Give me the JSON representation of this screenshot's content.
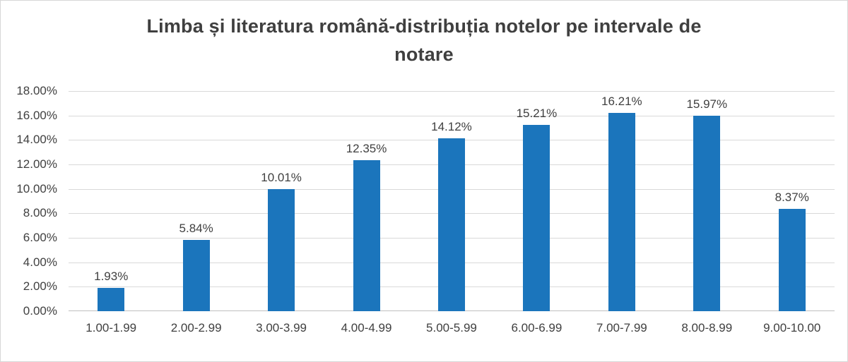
{
  "chart_data": {
    "type": "bar",
    "title": "Limba și literatura română-distribuția notelor pe intervale de notare",
    "title_lines": [
      "Limba și literatura română-distribuția notelor pe intervale de",
      "notare"
    ],
    "categories": [
      "1.00-1.99",
      "2.00-2.99",
      "3.00-3.99",
      "4.00-4.99",
      "5.00-5.99",
      "6.00-6.99",
      "7.00-7.99",
      "8.00-8.99",
      "9.00-10.00"
    ],
    "values": [
      1.93,
      5.84,
      10.01,
      12.35,
      14.12,
      15.21,
      16.21,
      15.97,
      8.37
    ],
    "data_labels": [
      "1.93%",
      "5.84%",
      "10.01%",
      "12.35%",
      "14.12%",
      "15.21%",
      "16.21%",
      "15.97%",
      "8.37%"
    ],
    "y_ticks": [
      "18.00%",
      "16.00%",
      "14.00%",
      "12.00%",
      "10.00%",
      "8.00%",
      "6.00%",
      "4.00%",
      "2.00%",
      "0.00%"
    ],
    "ylim": [
      0,
      18
    ],
    "y_tick_step": 2,
    "xlabel": "",
    "ylabel": "",
    "legend_position": "none",
    "grid": true,
    "colors": {
      "bar": "#1b75bc",
      "title_text": "#3f3f3f",
      "axis_text": "#404040",
      "gridline": "#d9d9d9",
      "border": "#d7d7d7",
      "background": "#ffffff"
    }
  }
}
